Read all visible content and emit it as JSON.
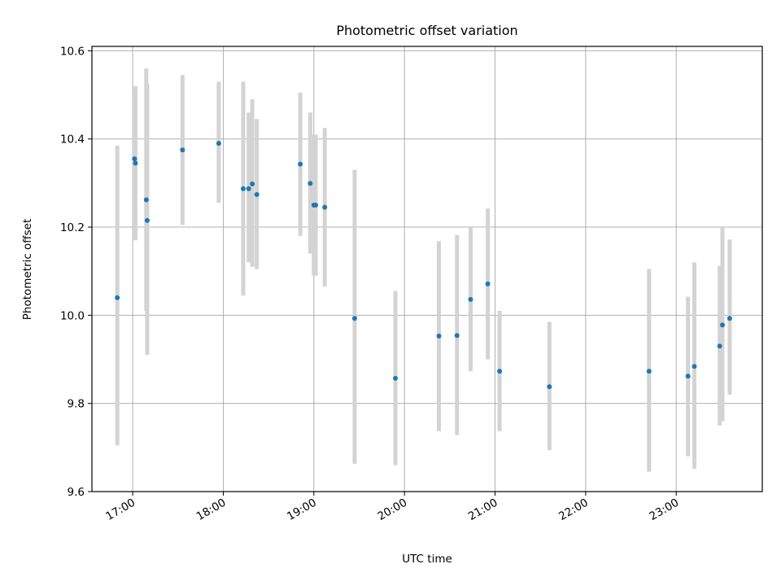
{
  "chart_data": {
    "type": "scatter",
    "title": "Photometric offset variation",
    "xlabel": "UTC time",
    "ylabel": "Photometric offset",
    "grid": true,
    "xlim": [
      16.55,
      23.95
    ],
    "ylim": [
      9.6,
      10.61
    ],
    "x_ticks": [
      {
        "value": 17,
        "label": "17:00"
      },
      {
        "value": 18,
        "label": "18:00"
      },
      {
        "value": 19,
        "label": "19:00"
      },
      {
        "value": 20,
        "label": "20:00"
      },
      {
        "value": 21,
        "label": "21:00"
      },
      {
        "value": 22,
        "label": "22:00"
      },
      {
        "value": 23,
        "label": "23:00"
      }
    ],
    "y_ticks": [
      {
        "value": 9.6,
        "label": "9.6"
      },
      {
        "value": 9.8,
        "label": "9.8"
      },
      {
        "value": 10.0,
        "label": "10.0"
      },
      {
        "value": 10.2,
        "label": "10.2"
      },
      {
        "value": 10.4,
        "label": "10.4"
      },
      {
        "value": 10.6,
        "label": "10.6"
      }
    ],
    "colors": {
      "point": "#1f77b4",
      "errorbar": "#d3d3d3",
      "grid": "#b0b0b0",
      "axes": "#000000"
    },
    "series": [
      {
        "name": "Photometric offset",
        "x": [
          16.83,
          17.02,
          17.03,
          17.15,
          17.16,
          17.55,
          17.95,
          18.22,
          18.28,
          18.32,
          18.37,
          18.85,
          18.96,
          19.0,
          19.02,
          19.12,
          19.45,
          19.9,
          20.38,
          20.58,
          20.73,
          20.92,
          21.05,
          21.6,
          22.7,
          23.13,
          23.2,
          23.48,
          23.51,
          23.59
        ],
        "y": [
          10.04,
          10.355,
          10.345,
          10.262,
          10.215,
          10.375,
          10.39,
          10.287,
          10.287,
          10.298,
          10.274,
          10.343,
          10.299,
          10.25,
          10.25,
          10.245,
          9.993,
          9.857,
          9.953,
          9.954,
          10.036,
          10.071,
          9.873,
          9.838,
          9.873,
          9.862,
          9.884,
          9.93,
          9.978,
          9.993
        ],
        "err_low": [
          9.705,
          10.2,
          10.17,
          10.01,
          9.91,
          10.205,
          10.255,
          10.045,
          10.12,
          10.11,
          10.105,
          10.18,
          10.14,
          10.09,
          10.09,
          10.065,
          9.663,
          9.66,
          9.737,
          9.728,
          9.873,
          9.9,
          9.737,
          9.694,
          9.645,
          9.68,
          9.652,
          9.75,
          9.76,
          9.82
        ],
        "err_high": [
          10.385,
          10.495,
          10.52,
          10.56,
          10.525,
          10.545,
          10.53,
          10.53,
          10.46,
          10.49,
          10.445,
          10.505,
          10.46,
          10.41,
          10.41,
          10.425,
          10.33,
          10.055,
          10.168,
          10.182,
          10.2,
          10.242,
          10.01,
          9.985,
          10.105,
          10.042,
          10.12,
          10.112,
          10.2,
          10.172
        ]
      }
    ]
  }
}
